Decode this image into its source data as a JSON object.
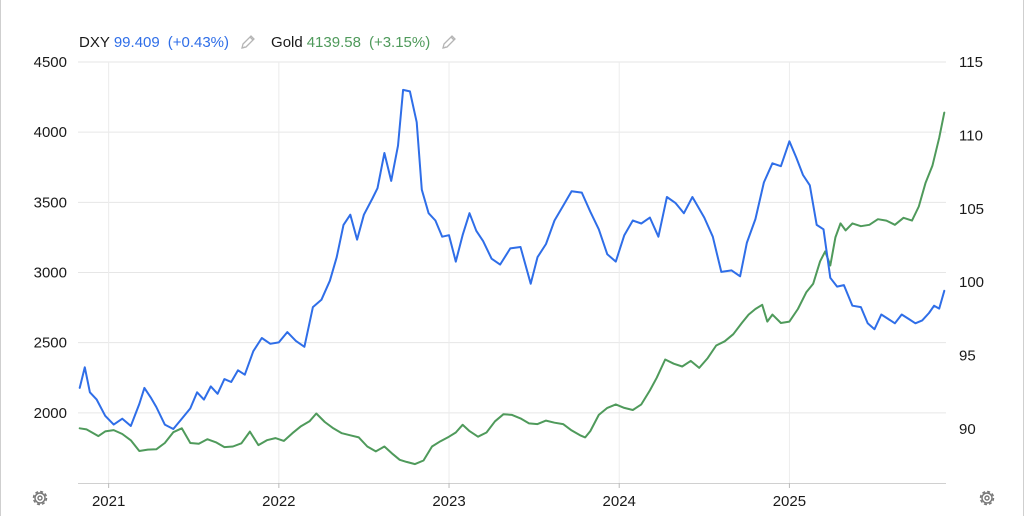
{
  "legend": {
    "dxy": {
      "symbol": "DXY",
      "value": "99.409",
      "change": "(+0.43%)",
      "color": "#2f6ee8"
    },
    "gold": {
      "symbol": "Gold",
      "value": "4139.58",
      "change": "(+3.15%)",
      "color": "#4f9a5b"
    }
  },
  "icons": {
    "edit": "pencil-icon",
    "settings": "gear-icon"
  },
  "chart_data": {
    "type": "line",
    "grid": true,
    "x_ticks": [
      "2021",
      "2022",
      "2023",
      "2024",
      "2025"
    ],
    "x_range": [
      2020.82,
      2025.92
    ],
    "left_axis": {
      "series": "Gold",
      "ticks": [
        "2000",
        "2500",
        "3000",
        "3500",
        "4000",
        "4500"
      ],
      "ylim": [
        1500,
        4500
      ]
    },
    "right_axis": {
      "series": "DXY",
      "ticks": [
        "90",
        "95",
        "100",
        "105",
        "110",
        "115"
      ],
      "ylim": [
        86.32,
        115
      ]
    },
    "series": [
      {
        "name": "DXY",
        "axis": "right",
        "color": "#2f6ee8",
        "points": [
          [
            2020.83,
            92.8
          ],
          [
            2020.86,
            94.2
          ],
          [
            2020.89,
            92.5
          ],
          [
            2020.93,
            92.0
          ],
          [
            2020.98,
            90.9
          ],
          [
            2021.03,
            90.3
          ],
          [
            2021.08,
            90.7
          ],
          [
            2021.13,
            90.2
          ],
          [
            2021.18,
            91.7
          ],
          [
            2021.21,
            92.8
          ],
          [
            2021.25,
            92.1
          ],
          [
            2021.28,
            91.5
          ],
          [
            2021.33,
            90.3
          ],
          [
            2021.38,
            90.0
          ],
          [
            2021.43,
            90.7
          ],
          [
            2021.48,
            91.4
          ],
          [
            2021.52,
            92.5
          ],
          [
            2021.56,
            92.0
          ],
          [
            2021.6,
            92.9
          ],
          [
            2021.64,
            92.4
          ],
          [
            2021.68,
            93.4
          ],
          [
            2021.72,
            93.2
          ],
          [
            2021.76,
            94.0
          ],
          [
            2021.8,
            93.7
          ],
          [
            2021.85,
            95.3
          ],
          [
            2021.9,
            96.2
          ],
          [
            2021.95,
            95.8
          ],
          [
            2022.0,
            95.9
          ],
          [
            2022.05,
            96.6
          ],
          [
            2022.1,
            96.0
          ],
          [
            2022.15,
            95.6
          ],
          [
            2022.2,
            98.3
          ],
          [
            2022.25,
            98.8
          ],
          [
            2022.3,
            100.1
          ],
          [
            2022.34,
            101.7
          ],
          [
            2022.38,
            103.9
          ],
          [
            2022.42,
            104.6
          ],
          [
            2022.46,
            102.9
          ],
          [
            2022.5,
            104.6
          ],
          [
            2022.55,
            105.7
          ],
          [
            2022.58,
            106.4
          ],
          [
            2022.62,
            108.8
          ],
          [
            2022.66,
            106.9
          ],
          [
            2022.7,
            109.3
          ],
          [
            2022.73,
            113.1
          ],
          [
            2022.77,
            113.0
          ],
          [
            2022.81,
            110.9
          ],
          [
            2022.84,
            106.3
          ],
          [
            2022.88,
            104.7
          ],
          [
            2022.92,
            104.2
          ],
          [
            2022.96,
            103.1
          ],
          [
            2023.0,
            103.2
          ],
          [
            2023.04,
            101.4
          ],
          [
            2023.08,
            103.2
          ],
          [
            2023.12,
            104.7
          ],
          [
            2023.16,
            103.5
          ],
          [
            2023.2,
            102.8
          ],
          [
            2023.25,
            101.6
          ],
          [
            2023.3,
            101.2
          ],
          [
            2023.36,
            102.3
          ],
          [
            2023.42,
            102.4
          ],
          [
            2023.48,
            99.9
          ],
          [
            2023.52,
            101.7
          ],
          [
            2023.57,
            102.6
          ],
          [
            2023.62,
            104.2
          ],
          [
            2023.67,
            105.2
          ],
          [
            2023.72,
            106.2
          ],
          [
            2023.78,
            106.1
          ],
          [
            2023.83,
            104.8
          ],
          [
            2023.88,
            103.6
          ],
          [
            2023.93,
            101.9
          ],
          [
            2023.98,
            101.4
          ],
          [
            2024.03,
            103.2
          ],
          [
            2024.08,
            104.2
          ],
          [
            2024.13,
            104.0
          ],
          [
            2024.18,
            104.4
          ],
          [
            2024.23,
            103.1
          ],
          [
            2024.28,
            105.8
          ],
          [
            2024.33,
            105.4
          ],
          [
            2024.38,
            104.7
          ],
          [
            2024.43,
            105.8
          ],
          [
            2024.5,
            104.4
          ],
          [
            2024.55,
            103.1
          ],
          [
            2024.6,
            100.7
          ],
          [
            2024.66,
            100.8
          ],
          [
            2024.71,
            100.4
          ],
          [
            2024.75,
            102.7
          ],
          [
            2024.8,
            104.3
          ],
          [
            2024.85,
            106.8
          ],
          [
            2024.9,
            108.1
          ],
          [
            2024.95,
            107.9
          ],
          [
            2025.0,
            109.6
          ],
          [
            2025.04,
            108.5
          ],
          [
            2025.08,
            107.3
          ],
          [
            2025.12,
            106.6
          ],
          [
            2025.16,
            103.9
          ],
          [
            2025.2,
            103.6
          ],
          [
            2025.24,
            100.3
          ],
          [
            2025.28,
            99.7
          ],
          [
            2025.32,
            99.8
          ],
          [
            2025.37,
            98.4
          ],
          [
            2025.42,
            98.3
          ],
          [
            2025.46,
            97.2
          ],
          [
            2025.5,
            96.8
          ],
          [
            2025.54,
            97.8
          ],
          [
            2025.58,
            97.5
          ],
          [
            2025.62,
            97.2
          ],
          [
            2025.66,
            97.8
          ],
          [
            2025.7,
            97.5
          ],
          [
            2025.74,
            97.2
          ],
          [
            2025.78,
            97.4
          ],
          [
            2025.82,
            97.9
          ],
          [
            2025.85,
            98.4
          ],
          [
            2025.88,
            98.2
          ],
          [
            2025.91,
            99.41
          ]
        ]
      },
      {
        "name": "Gold",
        "axis": "left",
        "color": "#4f9a5b",
        "points": [
          [
            2020.83,
            1890
          ],
          [
            2020.87,
            1882
          ],
          [
            2020.9,
            1862
          ],
          [
            2020.94,
            1834
          ],
          [
            2020.98,
            1868
          ],
          [
            2021.03,
            1877
          ],
          [
            2021.08,
            1849
          ],
          [
            2021.13,
            1804
          ],
          [
            2021.18,
            1728
          ],
          [
            2021.23,
            1738
          ],
          [
            2021.28,
            1740
          ],
          [
            2021.33,
            1785
          ],
          [
            2021.38,
            1862
          ],
          [
            2021.43,
            1890
          ],
          [
            2021.48,
            1785
          ],
          [
            2021.53,
            1780
          ],
          [
            2021.58,
            1812
          ],
          [
            2021.63,
            1790
          ],
          [
            2021.68,
            1756
          ],
          [
            2021.73,
            1760
          ],
          [
            2021.78,
            1783
          ],
          [
            2021.83,
            1866
          ],
          [
            2021.88,
            1770
          ],
          [
            2021.93,
            1805
          ],
          [
            2021.98,
            1820
          ],
          [
            2022.03,
            1800
          ],
          [
            2022.08,
            1855
          ],
          [
            2022.13,
            1905
          ],
          [
            2022.18,
            1940
          ],
          [
            2022.22,
            1995
          ],
          [
            2022.27,
            1935
          ],
          [
            2022.32,
            1890
          ],
          [
            2022.37,
            1855
          ],
          [
            2022.42,
            1840
          ],
          [
            2022.47,
            1825
          ],
          [
            2022.52,
            1760
          ],
          [
            2022.57,
            1725
          ],
          [
            2022.62,
            1760
          ],
          [
            2022.67,
            1705
          ],
          [
            2022.71,
            1665
          ],
          [
            2022.75,
            1650
          ],
          [
            2022.8,
            1635
          ],
          [
            2022.85,
            1660
          ],
          [
            2022.9,
            1760
          ],
          [
            2022.95,
            1798
          ],
          [
            2023.0,
            1830
          ],
          [
            2023.04,
            1860
          ],
          [
            2023.08,
            1915
          ],
          [
            2023.12,
            1870
          ],
          [
            2023.17,
            1830
          ],
          [
            2023.22,
            1860
          ],
          [
            2023.27,
            1940
          ],
          [
            2023.32,
            1990
          ],
          [
            2023.37,
            1985
          ],
          [
            2023.42,
            1960
          ],
          [
            2023.47,
            1925
          ],
          [
            2023.52,
            1920
          ],
          [
            2023.57,
            1945
          ],
          [
            2023.62,
            1930
          ],
          [
            2023.67,
            1920
          ],
          [
            2023.72,
            1875
          ],
          [
            2023.77,
            1840
          ],
          [
            2023.8,
            1825
          ],
          [
            2023.83,
            1870
          ],
          [
            2023.88,
            1985
          ],
          [
            2023.93,
            2035
          ],
          [
            2023.98,
            2060
          ],
          [
            2024.03,
            2035
          ],
          [
            2024.08,
            2020
          ],
          [
            2024.13,
            2060
          ],
          [
            2024.18,
            2160
          ],
          [
            2024.22,
            2250
          ],
          [
            2024.27,
            2380
          ],
          [
            2024.32,
            2350
          ],
          [
            2024.37,
            2330
          ],
          [
            2024.42,
            2370
          ],
          [
            2024.47,
            2320
          ],
          [
            2024.52,
            2390
          ],
          [
            2024.57,
            2480
          ],
          [
            2024.62,
            2510
          ],
          [
            2024.67,
            2560
          ],
          [
            2024.72,
            2640
          ],
          [
            2024.76,
            2700
          ],
          [
            2024.8,
            2740
          ],
          [
            2024.84,
            2770
          ],
          [
            2024.87,
            2650
          ],
          [
            2024.9,
            2700
          ],
          [
            2024.95,
            2640
          ],
          [
            2025.0,
            2650
          ],
          [
            2025.05,
            2740
          ],
          [
            2025.1,
            2860
          ],
          [
            2025.14,
            2920
          ],
          [
            2025.18,
            3080
          ],
          [
            2025.21,
            3150
          ],
          [
            2025.24,
            3050
          ],
          [
            2025.27,
            3250
          ],
          [
            2025.3,
            3350
          ],
          [
            2025.33,
            3300
          ],
          [
            2025.37,
            3350
          ],
          [
            2025.42,
            3330
          ],
          [
            2025.47,
            3340
          ],
          [
            2025.52,
            3380
          ],
          [
            2025.57,
            3370
          ],
          [
            2025.62,
            3340
          ],
          [
            2025.67,
            3390
          ],
          [
            2025.72,
            3370
          ],
          [
            2025.76,
            3470
          ],
          [
            2025.8,
            3640
          ],
          [
            2025.84,
            3760
          ],
          [
            2025.88,
            3960
          ],
          [
            2025.91,
            4139.58
          ]
        ]
      }
    ]
  }
}
